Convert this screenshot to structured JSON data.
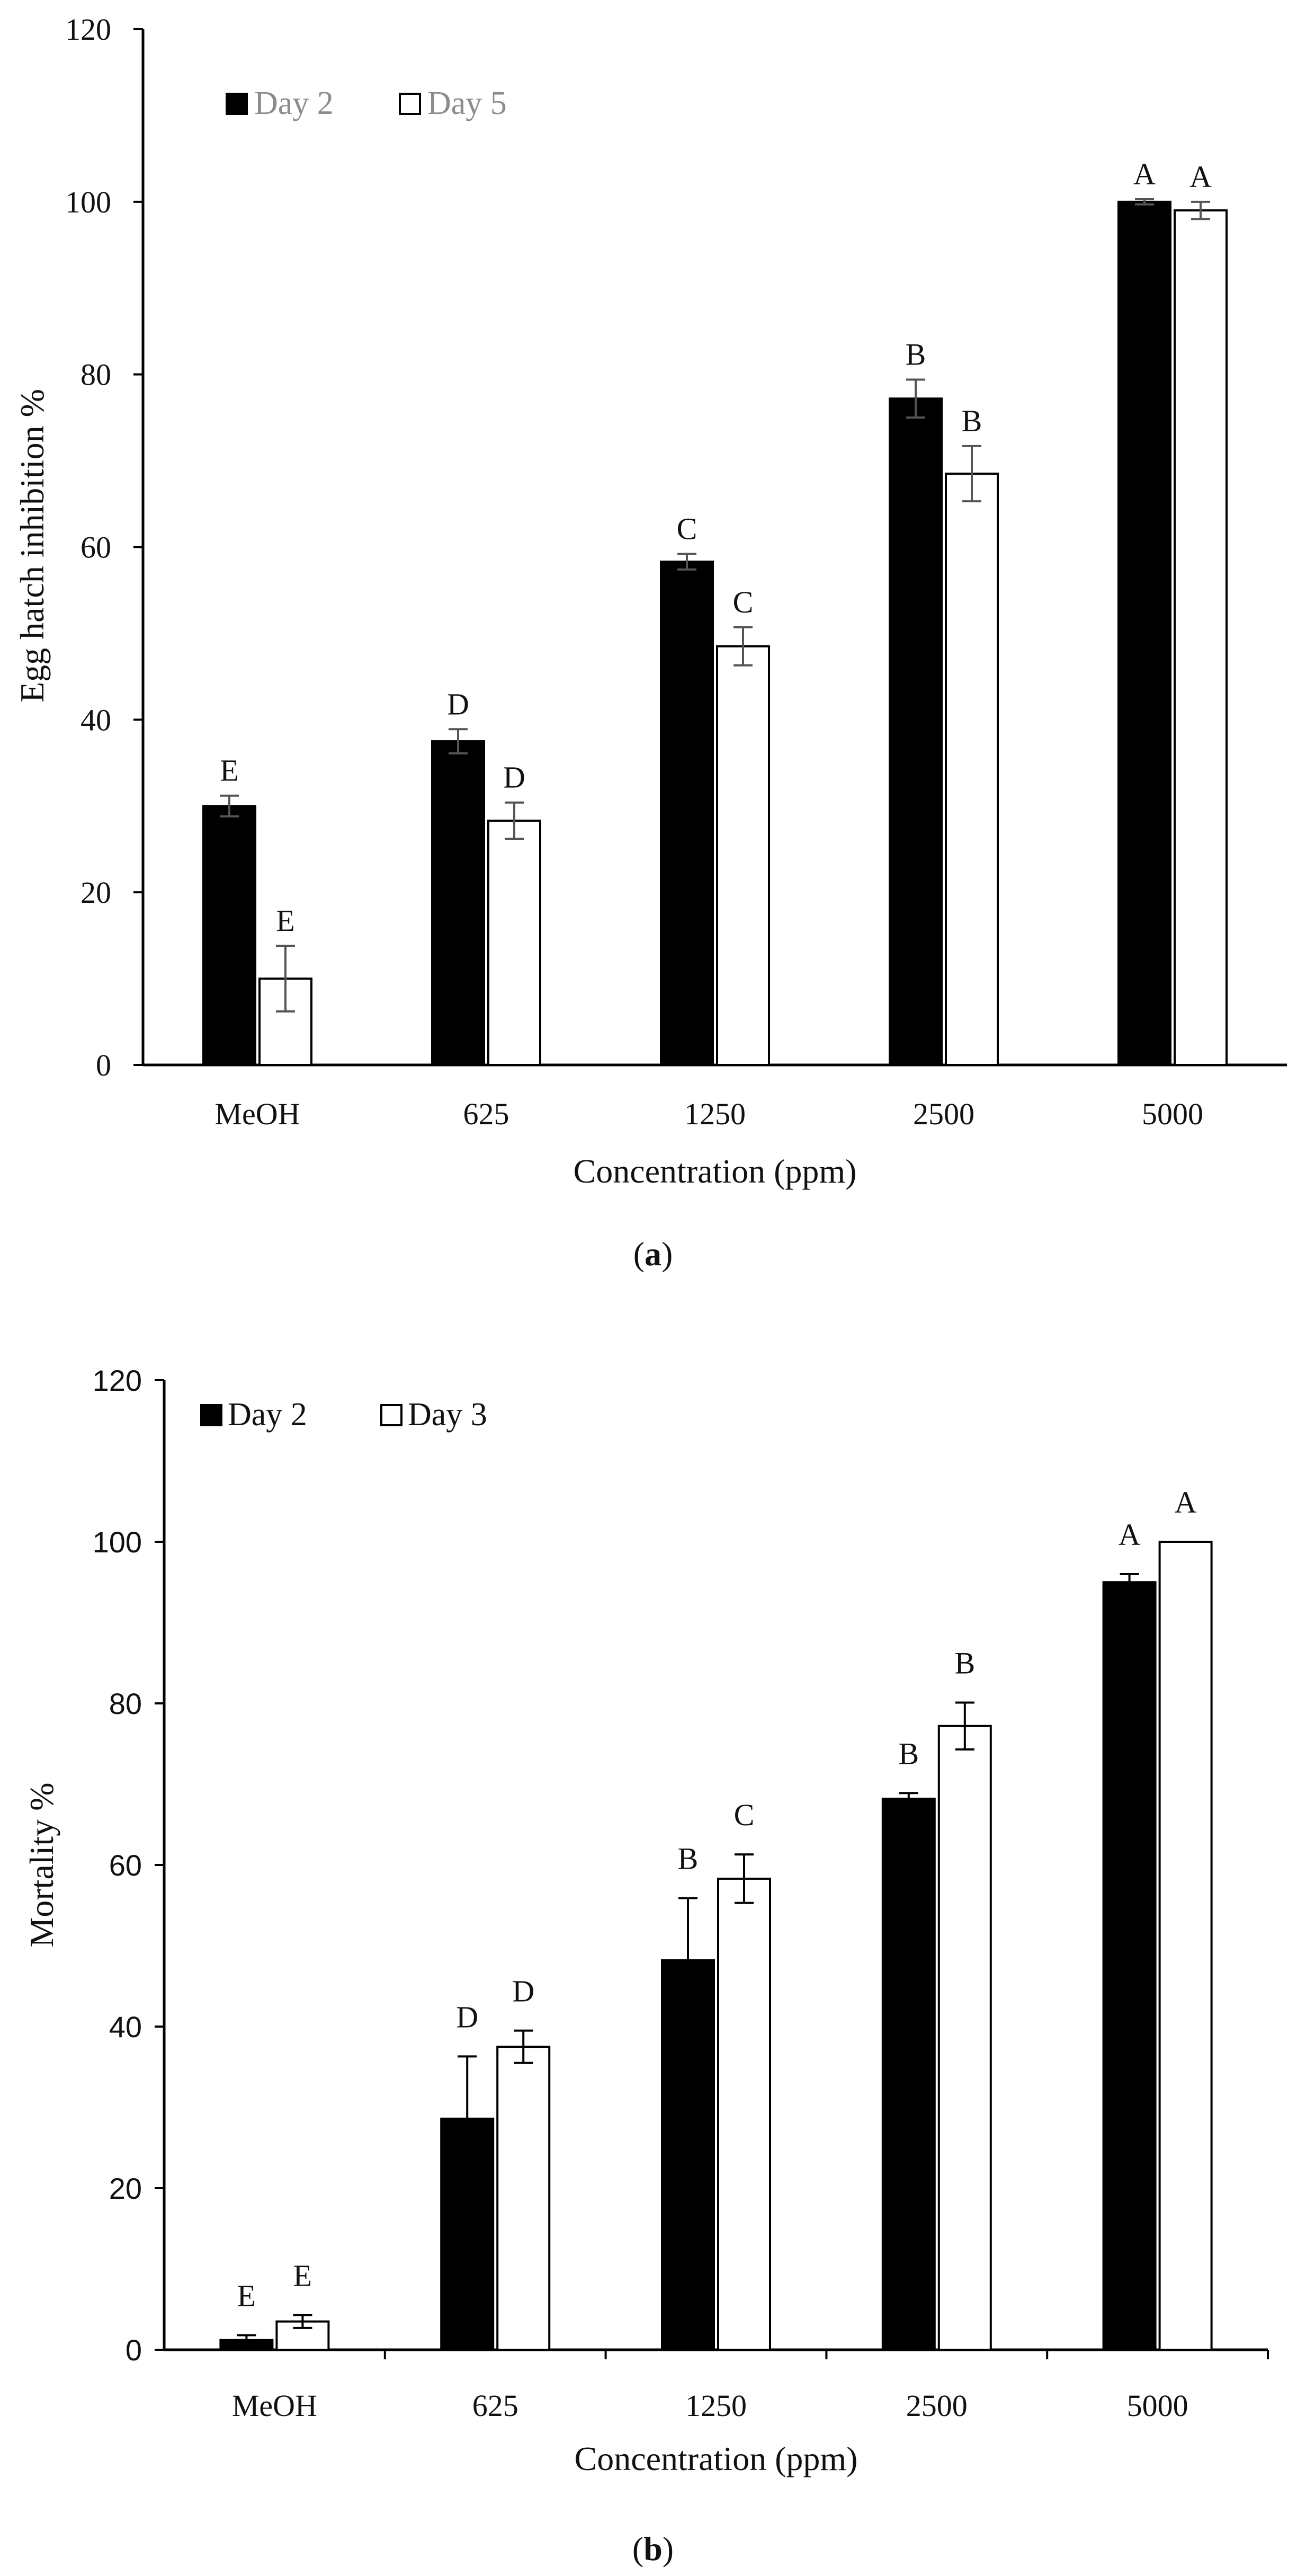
{
  "figure": {
    "caption_a_open": "(",
    "caption_a_letter": "a",
    "caption_a_close": ")",
    "caption_b_open": "(",
    "caption_b_letter": "b",
    "caption_b_close": ")"
  },
  "colors": {
    "day_filled": "#000000",
    "day_open": "#ffffff",
    "axis": "#000000",
    "errorbar_a": "#555555",
    "errorbar_b": "#000000"
  },
  "chart_data": [
    {
      "id": "a",
      "type": "bar",
      "title": "",
      "xlabel": "Concentration (ppm)",
      "ylabel": "Egg hatch inhibition %",
      "ylim": [
        0,
        120
      ],
      "yticks": [
        0,
        20,
        40,
        60,
        80,
        100,
        120
      ],
      "grid": false,
      "legend_position": "top-left",
      "categories": [
        "MeOH",
        "625",
        "1250",
        "2500",
        "5000"
      ],
      "series": [
        {
          "name": "Day 2",
          "fill": "black",
          "values": [
            30,
            37.5,
            58.3,
            77.2,
            100
          ],
          "errors": [
            1.2,
            1.4,
            0.9,
            2.2,
            0.3
          ],
          "labels": [
            "E",
            "D",
            "C",
            "B",
            "A"
          ]
        },
        {
          "name": "Day 5",
          "fill": "white",
          "values": [
            10,
            28.3,
            48.5,
            68.5,
            99
          ],
          "errors": [
            3.8,
            2.1,
            2.2,
            3.2,
            1.0
          ],
          "labels": [
            "E",
            "D",
            "C",
            "B",
            "A"
          ]
        }
      ]
    },
    {
      "id": "b",
      "type": "bar",
      "title": "",
      "xlabel": "Concentration (ppm)",
      "ylabel": "Mortality %",
      "ylim": [
        0,
        120
      ],
      "yticks": [
        0,
        20,
        40,
        60,
        80,
        100,
        120
      ],
      "grid": false,
      "legend_position": "top-left",
      "categories": [
        "MeOH",
        "625",
        "1250",
        "2500",
        "5000"
      ],
      "series": [
        {
          "name": "Day 2",
          "fill": "black",
          "values": [
            1.2,
            28.6,
            48.2,
            68.2,
            95
          ],
          "errors": [
            0.6,
            7.7,
            7.7,
            0.7,
            1.0
          ],
          "labels": [
            "E",
            "D",
            "B",
            "B",
            "A"
          ]
        },
        {
          "name": "Day 3",
          "fill": "white",
          "values": [
            3.5,
            37.5,
            58.3,
            77.2,
            100
          ],
          "errors": [
            0.8,
            2.0,
            3.0,
            2.9,
            0
          ],
          "labels": [
            "E",
            "D",
            "C",
            "B",
            "A"
          ]
        }
      ]
    }
  ]
}
